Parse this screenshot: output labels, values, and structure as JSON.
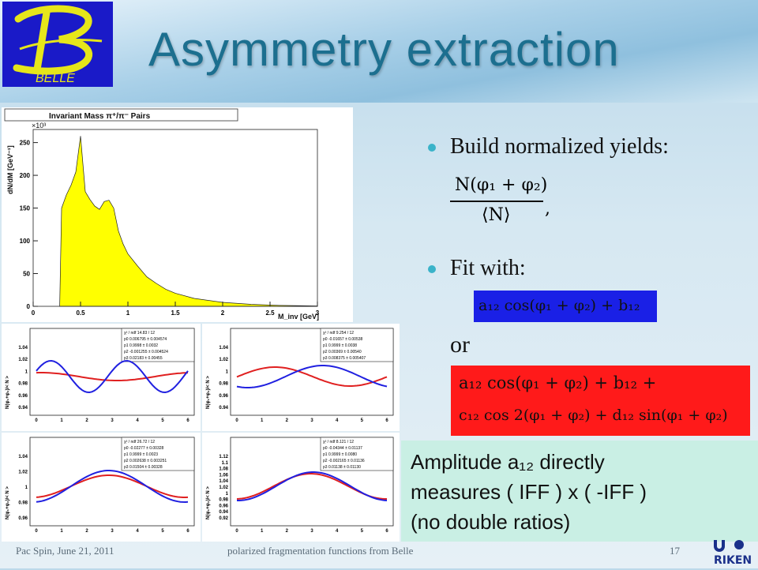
{
  "slide": {
    "title": "Asymmetry extraction",
    "logo_text": "BELLE",
    "bullets": [
      "Build normalized yields:",
      "Fit with:"
    ],
    "or_text": "or",
    "note_lines": [
      "Amplitude a₁₂ directly",
      "measures ( IFF ) x ( -IFF )",
      "(no double ratios)"
    ],
    "footer_left": "Pac Spin, June 21, 2011",
    "footer_center": "polarized fragmentation functions from Belle",
    "page_number": "17",
    "colors": {
      "title": "#1c6f8f",
      "bullet": "#3ab3c9",
      "fit_box": "#1a20e6",
      "alt_box": "#ff1a1a",
      "note_bg": "#c9efe4"
    }
  },
  "formulas": {
    "yield_numerator": "N(φ₁ + φ₂)",
    "yield_denominator": "⟨N⟩",
    "fit_simple": "a₁₂ cos(φ₁ + φ₂) + b₁₂",
    "fit_full_line1": "a₁₂ cos(φ₁ + φ₂) + b₁₂ +",
    "fit_full_line2": "c₁₂ cos 2(φ₁ + φ₂) + d₁₂ sin(φ₁ + φ₂)"
  },
  "histogram": {
    "title": "Invariant Mass π⁺/π⁻ Pairs",
    "ylabel": "dN/dM [GeV⁻¹]",
    "xlabel": "M_inv [GeV]",
    "multiplier": "×10³",
    "yticks": [
      "0",
      "50",
      "100",
      "150",
      "200",
      "250"
    ],
    "xticks": [
      "0",
      "0.5",
      "1",
      "1.5",
      "2",
      "2.5",
      "3"
    ]
  },
  "chart_data": {
    "type": "area",
    "title": "Invariant Mass π⁺/π⁻ Pairs",
    "xlabel": "M_inv [GeV]",
    "ylabel": "dN/dM [GeV⁻¹]",
    "xlim": [
      0,
      3
    ],
    "ylim": [
      0,
      270
    ],
    "x": [
      0.28,
      0.3,
      0.35,
      0.4,
      0.45,
      0.5,
      0.55,
      0.6,
      0.65,
      0.7,
      0.75,
      0.8,
      0.85,
      0.9,
      0.95,
      1.0,
      1.1,
      1.2,
      1.3,
      1.4,
      1.5,
      1.7,
      2.0,
      2.3,
      2.6,
      3.0
    ],
    "y": [
      0,
      150,
      170,
      185,
      205,
      260,
      175,
      163,
      153,
      148,
      160,
      162,
      150,
      115,
      95,
      80,
      62,
      45,
      35,
      26,
      20,
      12,
      6,
      3,
      1.5,
      0.5
    ]
  },
  "fit_panels": [
    {
      "chi2": "χ² / ndf  14.83 / 12",
      "params": [
        "p0  0.006795 ± 0.004574",
        "p1  0.9998 ± 0.0032",
        "p2  -0.001255 ± 0.004524",
        "p3  0.02183 ± 0.00455"
      ],
      "ylabel": "N(φ₁+φ₂)/< N >",
      "yticks": [
        "1.04",
        "1.02",
        "1",
        "0.98",
        "0.96",
        "0.94"
      ],
      "xticks": [
        "0",
        "1",
        "2",
        "3",
        "4",
        "5",
        "6"
      ]
    },
    {
      "chi2": "χ² / ndf  9.254 / 12",
      "params": [
        "p0  -0.01657 ± 0.00538",
        "p1  0.9999 ± 0.0038",
        "p2  0.00369 ± 0.00540",
        "p3  0.008375 ± 0.005407"
      ],
      "ylabel": "N(φ₁+φ₂)/< N >",
      "yticks": [
        "1.04",
        "1.02",
        "1",
        "0.98",
        "0.96",
        "0.94"
      ],
      "xticks": [
        "0",
        "1",
        "2",
        "3",
        "4",
        "5",
        "6"
      ]
    },
    {
      "chi2": "χ² / ndf  26.72 / 12",
      "params": [
        "p0  -0.02277 ± 0.00328",
        "p1  0.9999 ± 0.0023",
        "p2  0.002638 ± 0.003251",
        "p3  0.01504 ± 0.00328"
      ],
      "ylabel": "N(φ₁+φ₂)/< N >",
      "yticks": [
        "1.04",
        "1.02",
        "1",
        "0.98",
        "0.96"
      ],
      "xticks": [
        "0",
        "1",
        "2",
        "3",
        "4",
        "5",
        "6"
      ]
    },
    {
      "chi2": "χ² / ndf  8.121 / 12",
      "params": [
        "p0  -0.04344 ± 0.01137",
        "p1  0.9999 ± 0.0080",
        "p2  -0.002165 ± 0.01136",
        "p3  0.01138 ± 0.01130"
      ],
      "ylabel": "N(φ₁+φ₂)/< N >",
      "yticks": [
        "1.12",
        "1.1",
        "1.08",
        "1.06",
        "1.04",
        "1.02",
        "1",
        "0.98",
        "0.96",
        "0.94",
        "0.92"
      ],
      "xticks": [
        "0",
        "1",
        "2",
        "3",
        "4",
        "5",
        "6"
      ]
    }
  ]
}
